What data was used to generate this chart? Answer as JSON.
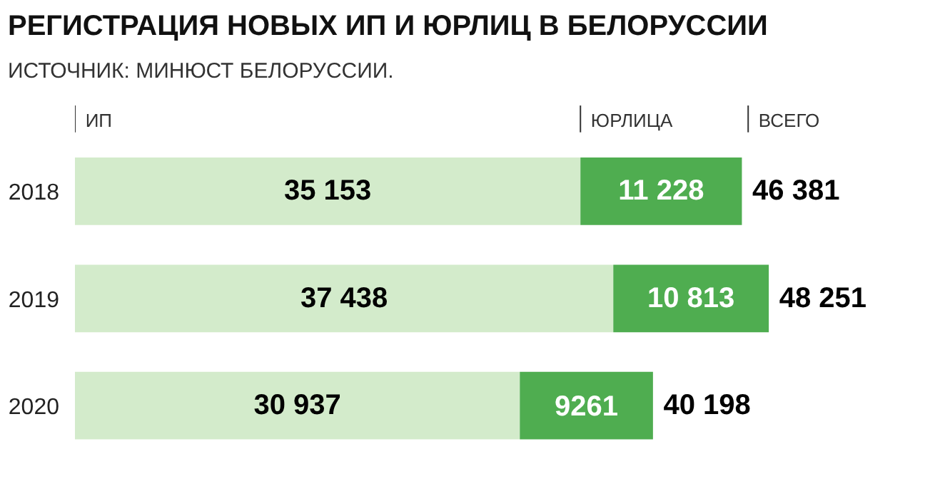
{
  "chart_data": {
    "type": "bar",
    "orientation": "horizontal",
    "stacked": true,
    "title": "РЕГИСТРАЦИЯ НОВЫХ ИП И ЮРЛИЦ В БЕЛОРУССИИ",
    "subtitle": "ИСТОЧНИК: МИНЮСТ БЕЛОРУССИИ.",
    "categories": [
      "2018",
      "2019",
      "2020"
    ],
    "series": [
      {
        "name": "ИП",
        "color": "#d3ebcb",
        "values": [
          35153,
          37438,
          30937
        ],
        "value_labels": [
          "35 153",
          "37 438",
          "30 937"
        ]
      },
      {
        "name": "ЮРЛИЦА",
        "color": "#4fad50",
        "values": [
          11228,
          10813,
          9261
        ],
        "value_labels": [
          "11 228",
          "10 813",
          "9261"
        ]
      }
    ],
    "totals": [
      "46 381",
      "48 251",
      "40 198"
    ],
    "annotations": [
      "ВСЕГО"
    ],
    "legend": "top"
  }
}
